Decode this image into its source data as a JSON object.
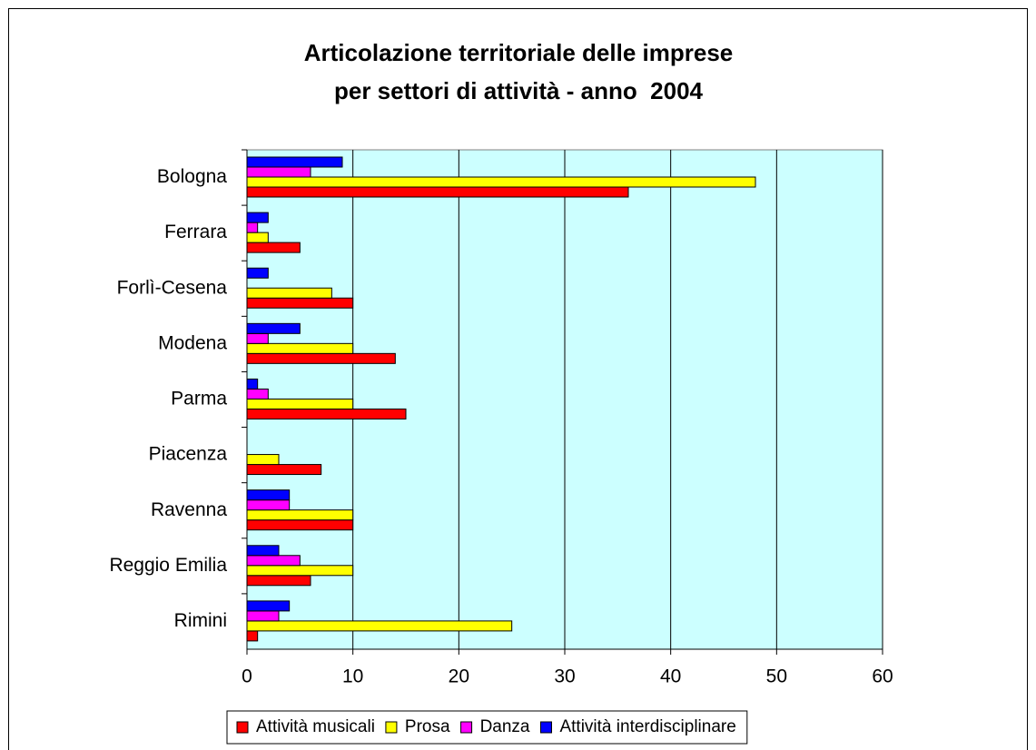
{
  "chart_data": {
    "type": "bar",
    "orientation": "horizontal",
    "title": [
      "Articolazione territoriale delle imprese",
      "per settori di attività - anno  2004"
    ],
    "categories": [
      "Bologna",
      "Ferrara",
      "Forlì-Cesena",
      "Modena",
      "Parma",
      "Piacenza",
      "Ravenna",
      "Reggio Emilia",
      "Rimini"
    ],
    "series": [
      {
        "name": "Attività musicali",
        "color": "#ff0000",
        "values": [
          36,
          5,
          10,
          14,
          15,
          7,
          10,
          6,
          1
        ]
      },
      {
        "name": "Prosa",
        "color": "#ffff00",
        "values": [
          48,
          2,
          8,
          10,
          10,
          3,
          10,
          10,
          25
        ]
      },
      {
        "name": "Danza",
        "color": "#ff00ff",
        "values": [
          6,
          1,
          0,
          2,
          2,
          0,
          4,
          5,
          3
        ]
      },
      {
        "name": "Attività interdisciplinare",
        "color": "#0000ff",
        "values": [
          9,
          2,
          2,
          5,
          1,
          0,
          4,
          3,
          4
        ]
      }
    ],
    "xlim": [
      0,
      60
    ],
    "xticks": [
      0,
      10,
      20,
      30,
      40,
      50,
      60
    ],
    "grid": true,
    "plot_background": "#ccffff",
    "legend": "bottom"
  }
}
